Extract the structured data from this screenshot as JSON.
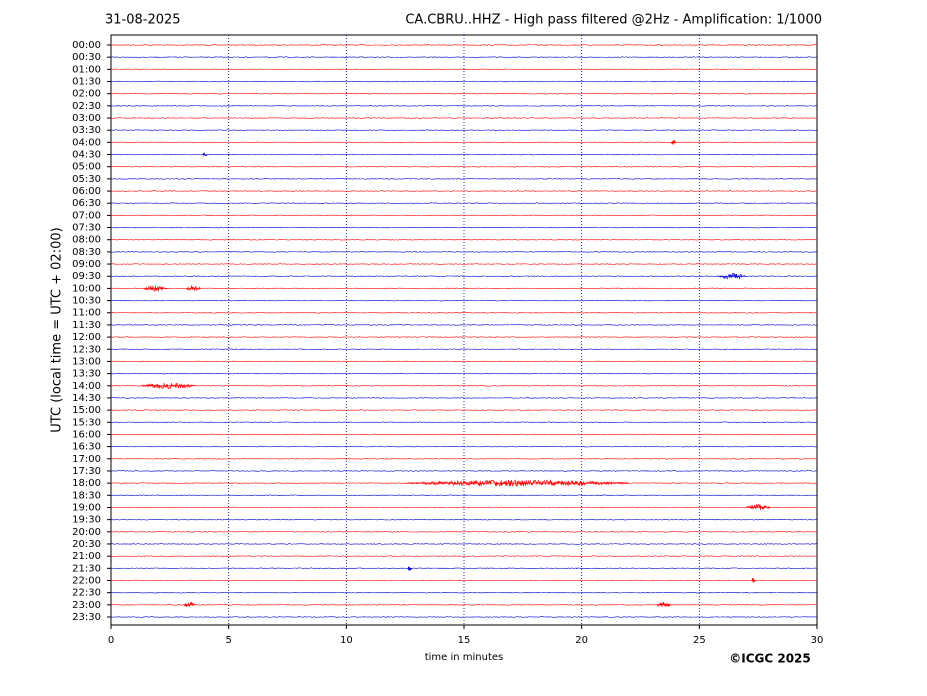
{
  "chart_data": {
    "type": "helicorder",
    "date": "31-08-2025",
    "title": "CA.CBRU..HHZ - High pass filtered @2Hz - Amplification: 1/1000",
    "x_label": "time in minutes",
    "y_label": "UTC (local time = UTC + 02:00)",
    "credit": "©ICGC 2025",
    "xlim": [
      0,
      30
    ],
    "xticks": [
      0,
      5,
      10,
      15,
      20,
      25,
      30
    ],
    "grid": true,
    "grid_color": "#00008b",
    "traces": [
      {
        "label": "00:00",
        "color": "#ff0000",
        "bursts": []
      },
      {
        "label": "00:30",
        "color": "#0000cc",
        "bursts": []
      },
      {
        "label": "01:00",
        "color": "#ff0000",
        "bursts": []
      },
      {
        "label": "01:30",
        "color": "#0000cc",
        "bursts": []
      },
      {
        "label": "02:00",
        "color": "#ff0000",
        "bursts": []
      },
      {
        "label": "02:30",
        "color": "#0000cc",
        "bursts": []
      },
      {
        "label": "03:00",
        "color": "#ff0000",
        "bursts": []
      },
      {
        "label": "03:30",
        "color": "#0000cc",
        "bursts": []
      },
      {
        "label": "04:00",
        "color": "#ff0000",
        "bursts": [
          [
            23.8,
            24.0
          ]
        ]
      },
      {
        "label": "04:30",
        "color": "#0000cc",
        "bursts": [
          [
            3.9,
            4.1
          ]
        ]
      },
      {
        "label": "05:00",
        "color": "#ff0000",
        "bursts": []
      },
      {
        "label": "05:30",
        "color": "#0000cc",
        "bursts": []
      },
      {
        "label": "06:00",
        "color": "#ff0000",
        "bursts": []
      },
      {
        "label": "06:30",
        "color": "#0000cc",
        "bursts": []
      },
      {
        "label": "07:00",
        "color": "#ff0000",
        "bursts": []
      },
      {
        "label": "07:30",
        "color": "#0000cc",
        "bursts": []
      },
      {
        "label": "08:00",
        "color": "#ff0000",
        "bursts": []
      },
      {
        "label": "08:30",
        "color": "#0000cc",
        "bursts": []
      },
      {
        "label": "09:00",
        "color": "#ff0000",
        "bursts": []
      },
      {
        "label": "09:30",
        "color": "#0000cc",
        "bursts": [
          [
            25.8,
            27.0
          ]
        ]
      },
      {
        "label": "10:00",
        "color": "#ff0000",
        "bursts": [
          [
            1.4,
            2.4
          ],
          [
            3.2,
            3.8
          ]
        ]
      },
      {
        "label": "10:30",
        "color": "#0000cc",
        "bursts": []
      },
      {
        "label": "11:00",
        "color": "#ff0000",
        "bursts": []
      },
      {
        "label": "11:30",
        "color": "#0000cc",
        "bursts": []
      },
      {
        "label": "12:00",
        "color": "#ff0000",
        "bursts": []
      },
      {
        "label": "12:30",
        "color": "#0000cc",
        "bursts": []
      },
      {
        "label": "13:00",
        "color": "#ff0000",
        "bursts": []
      },
      {
        "label": "13:30",
        "color": "#0000cc",
        "bursts": []
      },
      {
        "label": "14:00",
        "color": "#ff0000",
        "bursts": [
          [
            1.3,
            3.6
          ]
        ]
      },
      {
        "label": "14:30",
        "color": "#0000cc",
        "bursts": []
      },
      {
        "label": "15:00",
        "color": "#ff0000",
        "bursts": []
      },
      {
        "label": "15:30",
        "color": "#0000cc",
        "bursts": []
      },
      {
        "label": "16:00",
        "color": "#ff0000",
        "bursts": []
      },
      {
        "label": "16:30",
        "color": "#0000cc",
        "bursts": []
      },
      {
        "label": "17:00",
        "color": "#ff0000",
        "bursts": []
      },
      {
        "label": "17:30",
        "color": "#0000cc",
        "bursts": []
      },
      {
        "label": "18:00",
        "color": "#ff0000",
        "bursts": [
          [
            12.5,
            22.0
          ]
        ]
      },
      {
        "label": "18:30",
        "color": "#0000cc",
        "bursts": []
      },
      {
        "label": "19:00",
        "color": "#ff0000",
        "bursts": [
          [
            27.0,
            28.0
          ]
        ]
      },
      {
        "label": "19:30",
        "color": "#0000cc",
        "bursts": []
      },
      {
        "label": "20:00",
        "color": "#ff0000",
        "bursts": []
      },
      {
        "label": "20:30",
        "color": "#0000cc",
        "bursts": []
      },
      {
        "label": "21:00",
        "color": "#ff0000",
        "bursts": []
      },
      {
        "label": "21:30",
        "color": "#0000cc",
        "bursts": [
          [
            12.6,
            12.8
          ]
        ]
      },
      {
        "label": "22:00",
        "color": "#ff0000",
        "bursts": [
          [
            27.2,
            27.4
          ]
        ]
      },
      {
        "label": "22:30",
        "color": "#0000cc",
        "bursts": []
      },
      {
        "label": "23:00",
        "color": "#ff0000",
        "bursts": [
          [
            3.1,
            3.6
          ],
          [
            23.2,
            23.8
          ]
        ]
      },
      {
        "label": "23:30",
        "color": "#0000cc",
        "bursts": []
      }
    ]
  }
}
